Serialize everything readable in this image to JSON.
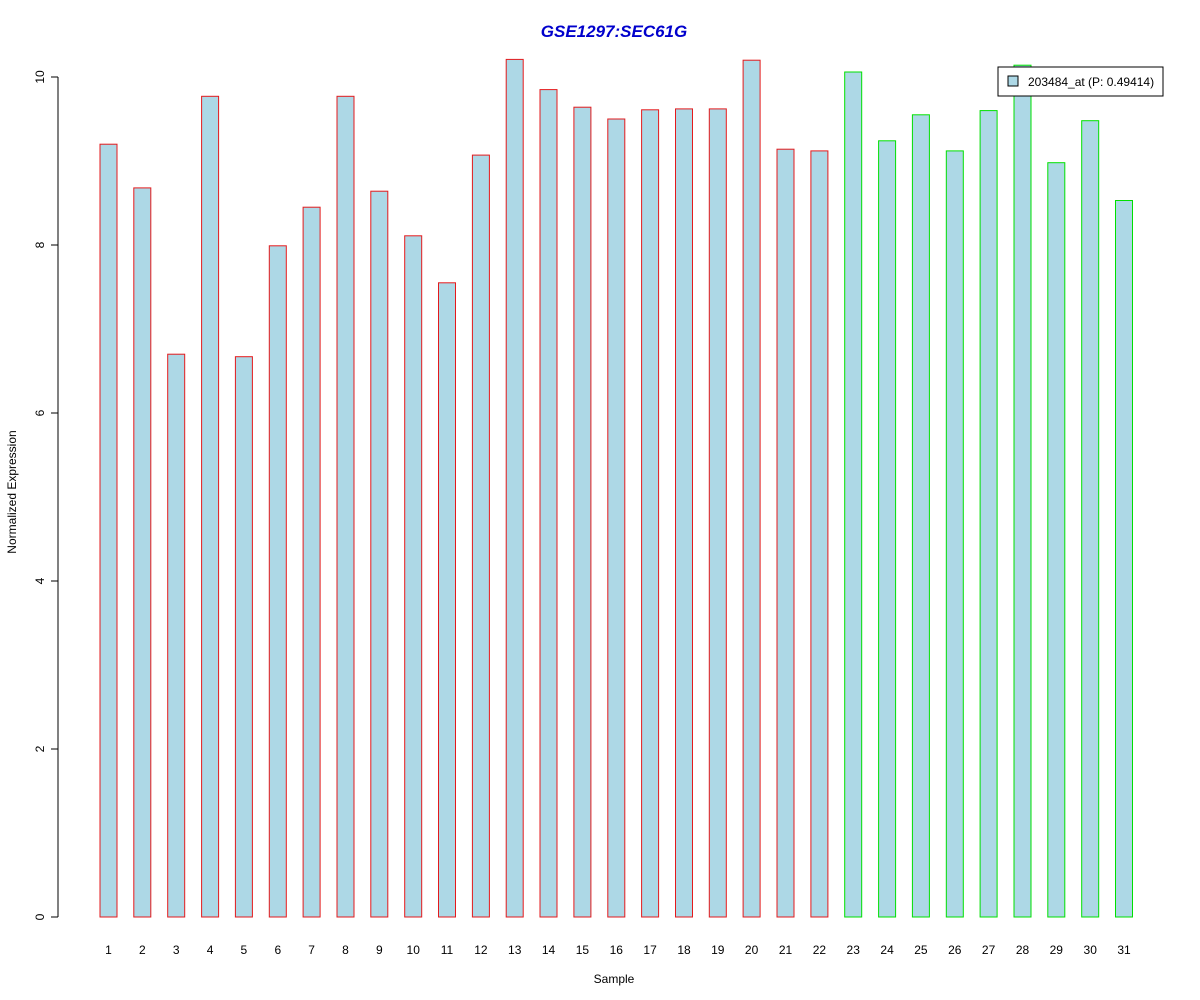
{
  "chart_data": {
    "type": "bar",
    "title": "GSE1297:SEC61G",
    "xlabel": "Sample",
    "ylabel": "Normalized Expression",
    "ylim": [
      0,
      10.2
    ],
    "yticks": [
      0,
      2,
      4,
      6,
      8,
      10
    ],
    "grid": false,
    "legend_position": "top-right",
    "categories": [
      "1",
      "2",
      "3",
      "4",
      "5",
      "6",
      "7",
      "8",
      "9",
      "10",
      "11",
      "12",
      "13",
      "14",
      "15",
      "16",
      "17",
      "18",
      "19",
      "20",
      "21",
      "22",
      "23",
      "24",
      "25",
      "26",
      "27",
      "28",
      "29",
      "30",
      "31"
    ],
    "series": [
      {
        "name": "203484_at (P: 0.49414)",
        "values": [
          9.2,
          8.68,
          6.7,
          9.77,
          6.67,
          7.99,
          8.45,
          9.77,
          8.64,
          8.11,
          7.55,
          9.07,
          10.21,
          9.85,
          9.64,
          9.5,
          9.61,
          9.62,
          9.62,
          10.2,
          9.14,
          9.12,
          10.06,
          9.24,
          9.55,
          9.12,
          9.6,
          10.14,
          8.98,
          9.48,
          8.53
        ],
        "fill": "#ADD8E6",
        "border_colors": [
          "#E41A1C",
          "#E41A1C",
          "#E41A1C",
          "#E41A1C",
          "#E41A1C",
          "#E41A1C",
          "#E41A1C",
          "#E41A1C",
          "#E41A1C",
          "#E41A1C",
          "#E41A1C",
          "#E41A1C",
          "#E41A1C",
          "#E41A1C",
          "#E41A1C",
          "#E41A1C",
          "#E41A1C",
          "#E41A1C",
          "#E41A1C",
          "#E41A1C",
          "#E41A1C",
          "#E41A1C",
          "#00E000",
          "#00E000",
          "#00E000",
          "#00E000",
          "#00E000",
          "#00E000",
          "#00E000",
          "#00E000",
          "#00E000"
        ]
      }
    ],
    "colors": {
      "title": "#0000CC",
      "bar_fill": "#ADD8E6",
      "group1_border": "#E41A1C",
      "group2_border": "#00E000"
    }
  }
}
